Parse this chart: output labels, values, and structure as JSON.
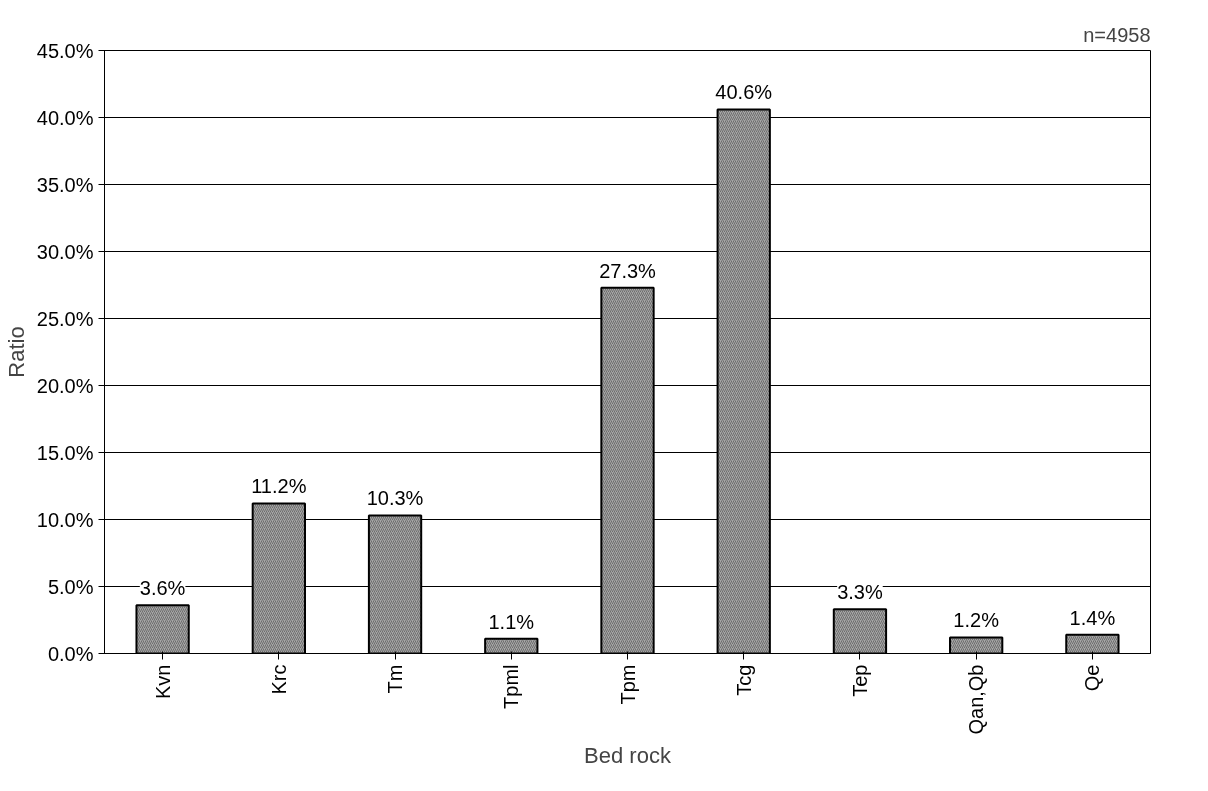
{
  "chart_data": {
    "type": "bar",
    "xlabel": "Bed rock",
    "ylabel": "Ratio",
    "categories": [
      "Kvn",
      "Krc",
      "Tm",
      "Tpml",
      "Tpm",
      "Tcg",
      "Tep",
      "Qan,Qb",
      "Qe"
    ],
    "values": [
      3.6,
      11.2,
      10.3,
      1.1,
      27.3,
      40.6,
      3.3,
      1.2,
      1.4
    ],
    "value_labels": [
      "3.6%",
      "11.2%",
      "10.3%",
      "1.1%",
      "27.3%",
      "40.6%",
      "3.3%",
      "1.2%",
      "1.4%"
    ],
    "color": "#a6a6a6",
    "ylim": [
      0,
      45
    ],
    "yticks": [
      {
        "value": 0,
        "label": "0.0%"
      },
      {
        "value": 5,
        "label": "5.0%"
      },
      {
        "value": 10,
        "label": "10.0%"
      },
      {
        "value": 15,
        "label": "15.0%"
      },
      {
        "value": 20,
        "label": "20.0%"
      },
      {
        "value": 25,
        "label": "25.0%"
      },
      {
        "value": 30,
        "label": "30.0%"
      },
      {
        "value": 35,
        "label": "35.0%"
      },
      {
        "value": 40,
        "label": "40.0%"
      },
      {
        "value": 45,
        "label": "45.0%"
      }
    ],
    "grid": "y",
    "annotations": [
      "n=4958"
    ]
  }
}
